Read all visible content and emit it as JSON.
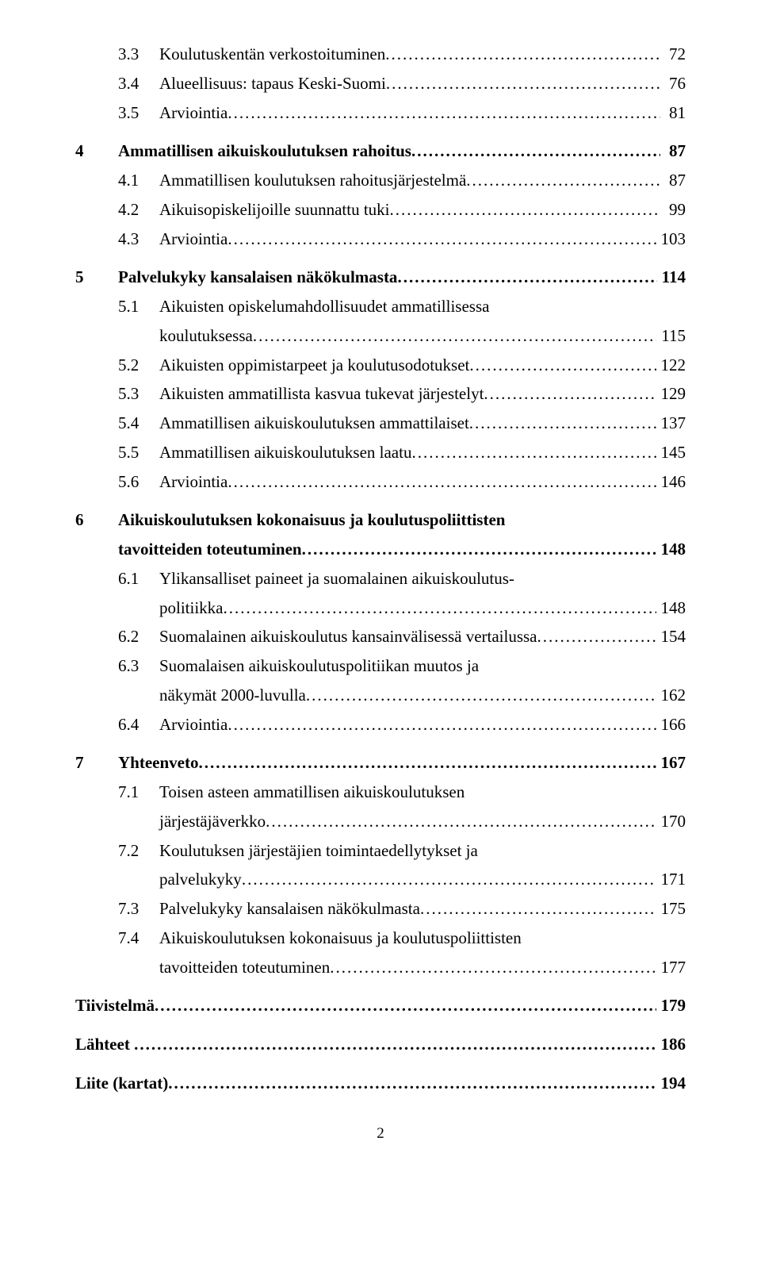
{
  "toc": [
    {
      "cls": "sub nogap",
      "num": "3.3",
      "text": "Koulutuskentän verkostoituminen",
      "page": " 72"
    },
    {
      "cls": "sub",
      "num": "3.4",
      "text": "Alueellisuus: tapaus Keski-Suomi",
      "page": " 76"
    },
    {
      "cls": "sub",
      "num": "3.5",
      "text": "Arviointia",
      "page": " 81"
    },
    {
      "cls": "chap bold section-group",
      "num": "4",
      "text": "Ammatillisen aikuiskoulutuksen rahoitus",
      "page": " 87"
    },
    {
      "cls": "sub",
      "num": "4.1",
      "text": "Ammatillisen koulutuksen rahoitusjärjestelmä",
      "page": " 87"
    },
    {
      "cls": "sub",
      "num": "4.2",
      "text": "Aikuisopiskelijoille suunnattu tuki",
      "page": " 99"
    },
    {
      "cls": "sub",
      "num": "4.3",
      "text": "Arviointia",
      "page": "103"
    },
    {
      "cls": "chap bold section-group",
      "num": "5",
      "text": "Palvelukyky kansalaisen näkökulmasta",
      "page": "114"
    },
    {
      "cls": "sub",
      "num": "5.1",
      "text": "Aikuisten opiskelumahdollisuudet ammatillisessa",
      "nopagedots": true
    },
    {
      "cls": "sub-cont",
      "text": "koulutuksessa",
      "page": "115"
    },
    {
      "cls": "sub",
      "num": "5.2",
      "text": "Aikuisten oppimistarpeet ja koulutusodotukset",
      "page": "122"
    },
    {
      "cls": "sub",
      "num": "5.3",
      "text": "Aikuisten ammatillista kasvua tukevat järjestelyt",
      "page": "129"
    },
    {
      "cls": "sub",
      "num": "5.4",
      "text": "Ammatillisen aikuiskoulutuksen ammattilaiset",
      "page": "137"
    },
    {
      "cls": "sub",
      "num": "5.5",
      "text": "Ammatillisen aikuiskoulutuksen laatu",
      "page": "145"
    },
    {
      "cls": "sub",
      "num": "5.6",
      "text": "Arviointia",
      "page": "146"
    },
    {
      "cls": "chap bold section-group",
      "num": "6",
      "text": "Aikuiskoulutuksen kokonaisuus ja koulutuspoliittisten",
      "nopagedots": true
    },
    {
      "cls": "chap bold",
      "num": "",
      "text": "tavoitteiden toteutuminen",
      "prepad": "      ",
      "page": "148"
    },
    {
      "cls": "sub",
      "num": "6.1",
      "text": "Ylikansalliset paineet ja suomalainen aikuiskoulutus-",
      "nopagedots": true
    },
    {
      "cls": "sub-cont",
      "text": "politiikka",
      "page": "148"
    },
    {
      "cls": "sub",
      "num": "6.2",
      "text": "Suomalainen aikuiskoulutus kansainvälisessä vertailussa",
      "page": "154"
    },
    {
      "cls": "sub",
      "num": "6.3",
      "text": "Suomalaisen aikuiskoulutuspolitiikan muutos ja",
      "nopagedots": true
    },
    {
      "cls": "sub-cont",
      "text": "näkymät 2000-luvulla",
      "page": "162"
    },
    {
      "cls": "sub",
      "num": "6.4",
      "text": "Arviointia",
      "page": "166"
    },
    {
      "cls": "chap bold section-group",
      "num": "7",
      "text": "Yhteenveto",
      "page": "167"
    },
    {
      "cls": "sub",
      "num": "7.1",
      "text": "Toisen asteen ammatillisen aikuiskoulutuksen",
      "nopagedots": true
    },
    {
      "cls": "sub-cont",
      "text": "järjestäjäverkko",
      "page": "170"
    },
    {
      "cls": "sub",
      "num": "7.2",
      "text": "Koulutuksen järjestäjien toimintaedellytykset ja",
      "nopagedots": true
    },
    {
      "cls": "sub-cont",
      "text": "palvelukyky",
      "page": "171"
    },
    {
      "cls": "sub",
      "num": "7.3",
      "text": "Palvelukyky kansalaisen näkökulmasta",
      "page": "175"
    },
    {
      "cls": "sub",
      "num": "7.4",
      "text": "Aikuiskoulutuksen kokonaisuus ja koulutuspoliittisten",
      "nopagedots": true
    },
    {
      "cls": "sub-cont",
      "text": "tavoitteiden toteutuminen",
      "page": "177"
    },
    {
      "cls": "chap bold section-group",
      "num": "",
      "text": "Tiivistelmä",
      "page": "179"
    },
    {
      "cls": "chap bold section-group",
      "num": "",
      "text": "Lähteet ",
      "page": "186"
    },
    {
      "cls": "chap bold section-group",
      "num": "",
      "text": "Liite (kartat)",
      "page": "194"
    }
  ],
  "pageNumber": "2"
}
